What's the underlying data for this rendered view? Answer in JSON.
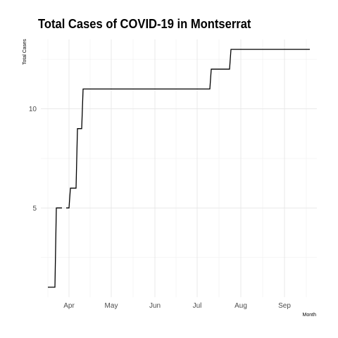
{
  "chart_data": {
    "type": "line",
    "title": "Total Cases of COVID-19 in Montserrat",
    "xlabel": "Month",
    "ylabel": "Total Cases",
    "line_color": "#000000",
    "grid": true,
    "x_ticks": [
      {
        "date": "2020-04-01",
        "label": "Apr"
      },
      {
        "date": "2020-05-01",
        "label": "May"
      },
      {
        "date": "2020-06-01",
        "label": "Jun"
      },
      {
        "date": "2020-07-01",
        "label": "Jul"
      },
      {
        "date": "2020-08-01",
        "label": "Aug"
      },
      {
        "date": "2020-09-01",
        "label": "Sep"
      }
    ],
    "y_ticks": [
      5,
      10
    ],
    "ylim": [
      0.5,
      13.5
    ],
    "xlim": [
      "2020-03-12",
      "2020-09-24"
    ],
    "points": [
      {
        "x": "2020-03-17",
        "y": 1
      },
      {
        "x": "2020-03-22",
        "y": 1
      },
      {
        "x": "2020-03-23",
        "y": 5
      },
      {
        "x": "2020-03-27",
        "y": 5
      },
      {
        "x": "2020-03-28",
        "y": null
      },
      {
        "x": "2020-03-30",
        "y": 5
      },
      {
        "x": "2020-04-01",
        "y": 5
      },
      {
        "x": "2020-04-02",
        "y": 6
      },
      {
        "x": "2020-04-06",
        "y": 6
      },
      {
        "x": "2020-04-07",
        "y": 9
      },
      {
        "x": "2020-04-10",
        "y": 9
      },
      {
        "x": "2020-04-11",
        "y": 11
      },
      {
        "x": "2020-07-10",
        "y": 11
      },
      {
        "x": "2020-07-11",
        "y": 12
      },
      {
        "x": "2020-07-24",
        "y": 12
      },
      {
        "x": "2020-07-25",
        "y": 13
      },
      {
        "x": "2020-09-19",
        "y": 13
      }
    ]
  }
}
